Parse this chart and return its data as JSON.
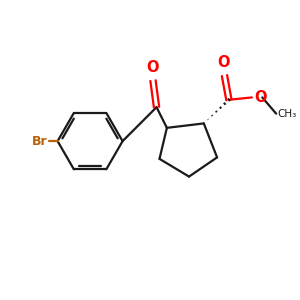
{
  "bg_color": "#ffffff",
  "line_color": "#1a1a1a",
  "red_color": "#ff0000",
  "brown_color": "#b8620a",
  "bond_lw": 1.6,
  "figsize": [
    3.0,
    3.0
  ],
  "dpi": 100,
  "xlim": [
    0,
    10
  ],
  "ylim": [
    0,
    10
  ]
}
